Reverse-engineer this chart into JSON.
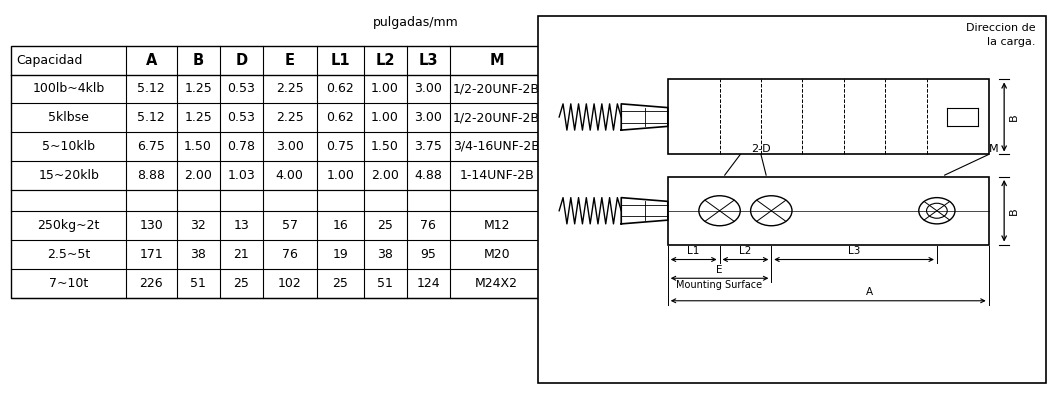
{
  "title_unit": "pulgadas/mm",
  "headers": [
    "Capacidad",
    "A",
    "B",
    "D",
    "E",
    "L1",
    "L2",
    "L3",
    "M"
  ],
  "rows_inches": [
    [
      "100lb~4klb",
      "5.12",
      "1.25",
      "0.53",
      "2.25",
      "0.62",
      "1.00",
      "3.00",
      "1/2-20UNF-2B"
    ],
    [
      "5klbse",
      "5.12",
      "1.25",
      "0.53",
      "2.25",
      "0.62",
      "1.00",
      "3.00",
      "1/2-20UNF-2B"
    ],
    [
      "5~10klb",
      "6.75",
      "1.50",
      "0.78",
      "3.00",
      "0.75",
      "1.50",
      "3.75",
      "3/4-16UNF-2B"
    ],
    [
      "15~20klb",
      "8.88",
      "2.00",
      "1.03",
      "4.00",
      "1.00",
      "2.00",
      "4.88",
      "1-14UNF-2B"
    ]
  ],
  "rows_mm": [
    [
      "250kg~2t",
      "130",
      "32",
      "13",
      "57",
      "16",
      "25",
      "76",
      "M12"
    ],
    [
      "2.5~5t",
      "171",
      "38",
      "21",
      "76",
      "19",
      "38",
      "95",
      "M20"
    ],
    [
      "7~10t",
      "226",
      "51",
      "25",
      "102",
      "25",
      "51",
      "124",
      "M24X2"
    ]
  ],
  "col_widths_norm": [
    1.6,
    0.7,
    0.6,
    0.6,
    0.75,
    0.65,
    0.6,
    0.6,
    1.3
  ],
  "diagram_label_direction": "Direccion de\nla carga.",
  "diagram_label_2D": "2-D",
  "diagram_label_M": "M",
  "diagram_label_B": "B",
  "diagram_label_L1": "L1",
  "diagram_label_L2": "L2",
  "diagram_label_L3": "L3",
  "diagram_label_E": "E",
  "diagram_label_A": "A",
  "diagram_label_mounting": "Mounting Surface",
  "bg_color": "#ffffff",
  "line_color": "#000000",
  "text_color": "#000000",
  "table_font_size": 9.0,
  "header_font_size": 10.5
}
